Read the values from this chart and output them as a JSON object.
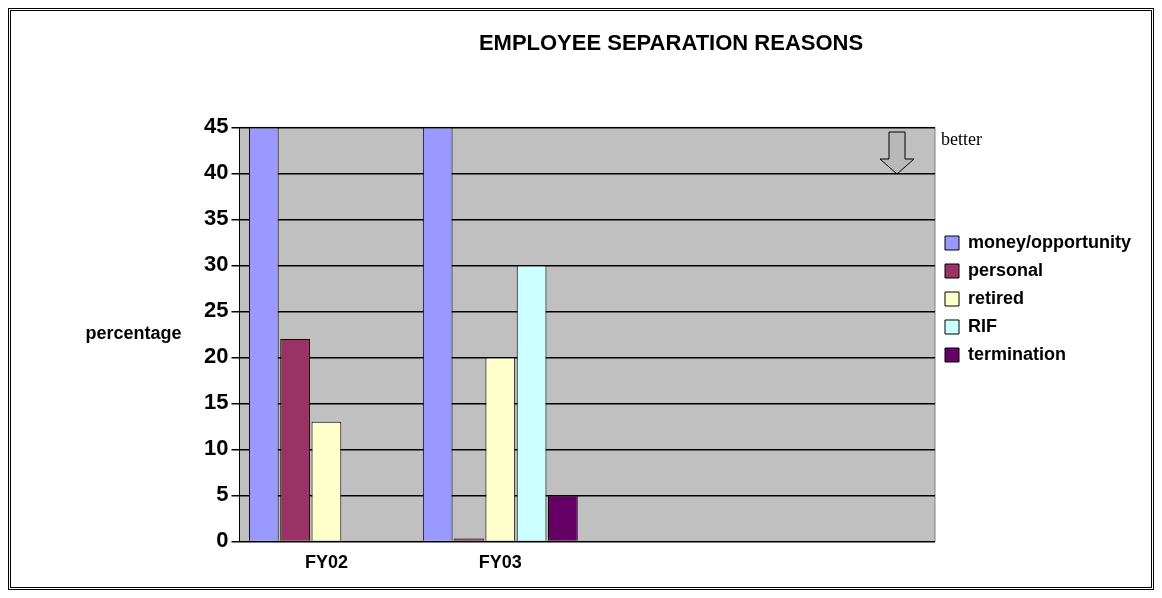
{
  "chart_data": {
    "type": "bar",
    "title": "EMPLOYEE SEPARATION REASONS",
    "ylabel": "percentage",
    "categories": [
      "FY02",
      "FY03",
      null,
      null
    ],
    "series": [
      {
        "name": "money/opportunity",
        "color": "#9999ff",
        "values": [
          45,
          45,
          null,
          null
        ]
      },
      {
        "name": "personal",
        "color": "#993366",
        "values": [
          22,
          0,
          null,
          null
        ]
      },
      {
        "name": "retired",
        "color": "#ffffcc",
        "values": [
          13,
          20,
          null,
          null
        ]
      },
      {
        "name": "RIF",
        "color": "#ccffff",
        "values": [
          null,
          30,
          null,
          null
        ]
      },
      {
        "name": "termination",
        "color": "#660066",
        "values": [
          null,
          5,
          null,
          null
        ]
      }
    ],
    "ylim": [
      0,
      45
    ],
    "yticks": [
      0,
      5,
      10,
      15,
      20,
      25,
      30,
      35,
      40,
      45
    ],
    "grid": "y",
    "legend": "right",
    "annotations": [
      "better"
    ]
  }
}
